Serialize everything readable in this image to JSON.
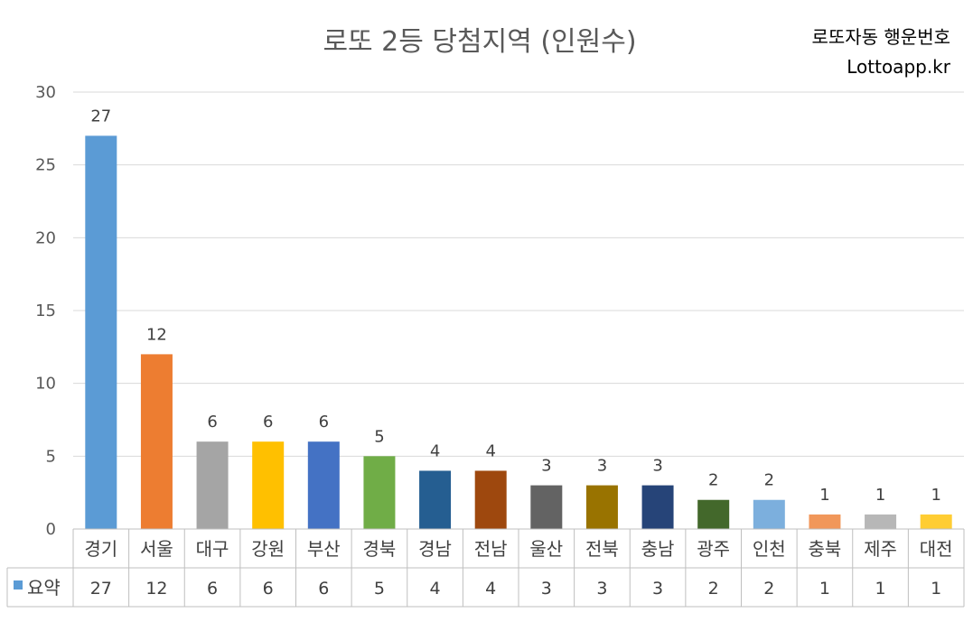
{
  "chart_data": {
    "type": "bar",
    "title": "로또 2등 당첨지역 (인원수)",
    "brand": [
      "로또자동 행운번호",
      "Lottoapp.kr"
    ],
    "ylim": [
      0,
      30
    ],
    "yticks": [
      0,
      5,
      10,
      15,
      20,
      25,
      30
    ],
    "grid": true,
    "legend_position": "data-table-left",
    "categories": [
      "경기",
      "서울",
      "대구",
      "강원",
      "부산",
      "경북",
      "경남",
      "전남",
      "울산",
      "전북",
      "충남",
      "광주",
      "인천",
      "충북",
      "제주",
      "대전"
    ],
    "series": [
      {
        "name": "요약",
        "legend_color": "#5B9BD5",
        "values": [
          27,
          12,
          6,
          6,
          6,
          5,
          4,
          4,
          3,
          3,
          3,
          2,
          2,
          1,
          1,
          1
        ],
        "colors": [
          "#5B9BD5",
          "#ED7D31",
          "#A5A5A5",
          "#FFC000",
          "#4472C4",
          "#70AD47",
          "#255E91",
          "#9E480E",
          "#636363",
          "#997300",
          "#264478",
          "#43682B",
          "#7CAFDD",
          "#F1975A",
          "#B7B7B7",
          "#FFCD33"
        ]
      }
    ]
  }
}
